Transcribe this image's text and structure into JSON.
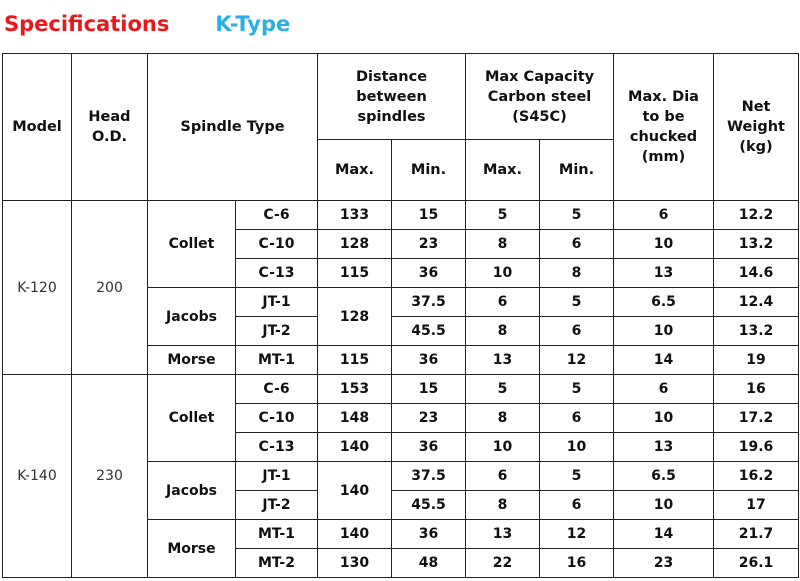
{
  "title": {
    "main": "Specifications",
    "type": "K-Type"
  },
  "colors": {
    "title_main": "#e8181b",
    "title_type": "#29aee6"
  },
  "headers": {
    "model": "Model",
    "head_od": [
      "Head",
      "O.D."
    ],
    "spindle_type": "Spindle Type",
    "distance": [
      "Distance",
      "between",
      "spindles"
    ],
    "max_capacity": [
      "Max Capacity",
      "Carbon steel",
      "(S45C)"
    ],
    "max_dia": [
      "Max. Dia",
      "to be",
      "chucked",
      "(mm)"
    ],
    "net_weight": [
      "Net",
      "Weight",
      "(kg)"
    ],
    "max": "Max.",
    "min": "Min."
  },
  "models": [
    {
      "model": "K-120",
      "head_od": "200",
      "groups": [
        {
          "type": "Collet",
          "rows": [
            {
              "spindle": "C-6",
              "dist_max": "133",
              "dist_min": "15",
              "cap_max": "5",
              "cap_min": "5",
              "dia": "6",
              "weight": "12.2"
            },
            {
              "spindle": "C-10",
              "dist_max": "128",
              "dist_min": "23",
              "cap_max": "8",
              "cap_min": "6",
              "dia": "10",
              "weight": "13.2"
            },
            {
              "spindle": "C-13",
              "dist_max": "115",
              "dist_min": "36",
              "cap_max": "10",
              "cap_min": "8",
              "dia": "13",
              "weight": "14.6"
            }
          ]
        },
        {
          "type": "Jacobs",
          "dist_max_shared": "128",
          "rows": [
            {
              "spindle": "JT-1",
              "dist_min": "37.5",
              "cap_max": "6",
              "cap_min": "5",
              "dia": "6.5",
              "weight": "12.4"
            },
            {
              "spindle": "JT-2",
              "dist_min": "45.5",
              "cap_max": "8",
              "cap_min": "6",
              "dia": "10",
              "weight": "13.2"
            }
          ]
        },
        {
          "type": "Morse",
          "rows": [
            {
              "spindle": "MT-1",
              "dist_max": "115",
              "dist_min": "36",
              "cap_max": "13",
              "cap_min": "12",
              "dia": "14",
              "weight": "19"
            }
          ]
        }
      ]
    },
    {
      "model": "K-140",
      "head_od": "230",
      "groups": [
        {
          "type": "Collet",
          "rows": [
            {
              "spindle": "C-6",
              "dist_max": "153",
              "dist_min": "15",
              "cap_max": "5",
              "cap_min": "5",
              "dia": "6",
              "weight": "16"
            },
            {
              "spindle": "C-10",
              "dist_max": "148",
              "dist_min": "23",
              "cap_max": "8",
              "cap_min": "6",
              "dia": "10",
              "weight": "17.2"
            },
            {
              "spindle": "C-13",
              "dist_max": "140",
              "dist_min": "36",
              "cap_max": "10",
              "cap_min": "10",
              "dia": "13",
              "weight": "19.6"
            }
          ]
        },
        {
          "type": "Jacobs",
          "dist_max_shared": "140",
          "rows": [
            {
              "spindle": "JT-1",
              "dist_min": "37.5",
              "cap_max": "6",
              "cap_min": "5",
              "dia": "6.5",
              "weight": "16.2"
            },
            {
              "spindle": "JT-2",
              "dist_min": "45.5",
              "cap_max": "8",
              "cap_min": "6",
              "dia": "10",
              "weight": "17"
            }
          ]
        },
        {
          "type": "Morse",
          "rows": [
            {
              "spindle": "MT-1",
              "dist_max": "140",
              "dist_min": "36",
              "cap_max": "13",
              "cap_min": "12",
              "dia": "14",
              "weight": "21.7"
            },
            {
              "spindle": "MT-2",
              "dist_max": "130",
              "dist_min": "48",
              "cap_max": "22",
              "cap_min": "16",
              "dia": "23",
              "weight": "26.1"
            }
          ]
        }
      ]
    }
  ]
}
